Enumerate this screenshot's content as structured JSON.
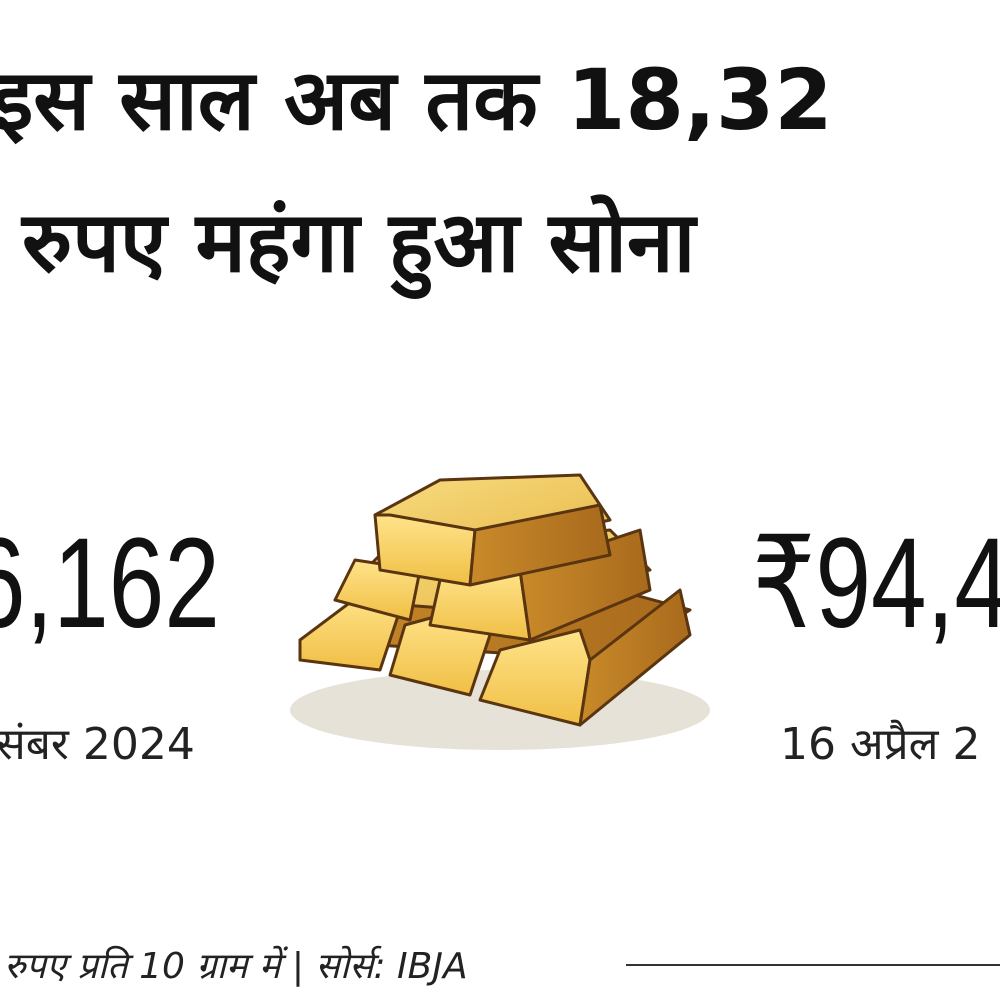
{
  "header": {
    "title_lines": [
      "इस साल अब तक 18,32",
      "रुपए महंगा हुआ सोना"
    ]
  },
  "left": {
    "price": "6,162",
    "date": "संबर 2024"
  },
  "right": {
    "price": "₹94,4",
    "date": "16 अप्रैल 2"
  },
  "footer": {
    "note": "रुपए प्रति 10 ग्राम में | सोर्स: IBJA"
  }
}
